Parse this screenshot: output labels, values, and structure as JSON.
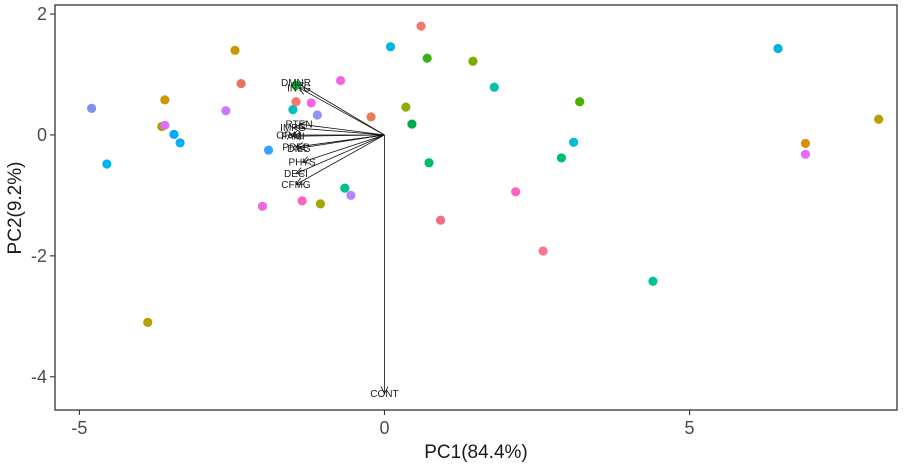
{
  "chart_data": {
    "type": "scatter",
    "subtype": "pca-biplot",
    "title": "",
    "xlabel": "PC1(84.4%)",
    "ylabel": "PC2(9.2%)",
    "xlim": [
      -5.4,
      8.4
    ],
    "ylim": [
      -4.55,
      2.15
    ],
    "xticks": [
      -5,
      0,
      5
    ],
    "yticks": [
      -4,
      -2,
      0,
      2
    ],
    "xtick_labels": [
      "-5",
      "0",
      "5"
    ],
    "ytick_labels": [
      "-4",
      "-2",
      "0",
      "2"
    ],
    "grid": false,
    "legend": "none",
    "points": [
      {
        "x": 0.6,
        "y": 1.8,
        "color": "#F07A6E"
      },
      {
        "x": 0.1,
        "y": 1.46,
        "color": "#00B5E0"
      },
      {
        "x": 0.7,
        "y": 1.27,
        "color": "#3DAE1E"
      },
      {
        "x": 1.45,
        "y": 1.22,
        "color": "#7CAE00"
      },
      {
        "x": -2.45,
        "y": 1.4,
        "color": "#C99800"
      },
      {
        "x": -2.35,
        "y": 0.85,
        "color": "#E8735E"
      },
      {
        "x": -0.72,
        "y": 0.9,
        "color": "#F564E3"
      },
      {
        "x": -1.45,
        "y": 0.82,
        "color": "#00BA38"
      },
      {
        "x": -3.6,
        "y": 0.58,
        "color": "#CD9600"
      },
      {
        "x": -4.8,
        "y": 0.44,
        "color": "#7F8FF0"
      },
      {
        "x": -2.6,
        "y": 0.4,
        "color": "#C77CFF"
      },
      {
        "x": -1.5,
        "y": 0.42,
        "color": "#00BFC4"
      },
      {
        "x": -1.45,
        "y": 0.55,
        "color": "#F8766D"
      },
      {
        "x": -1.2,
        "y": 0.53,
        "color": "#F564E3"
      },
      {
        "x": -1.1,
        "y": 0.33,
        "color": "#9590FF"
      },
      {
        "x": -0.22,
        "y": 0.3,
        "color": "#E87C55"
      },
      {
        "x": 0.35,
        "y": 0.46,
        "color": "#8FAA00"
      },
      {
        "x": 0.45,
        "y": 0.18,
        "color": "#00A84D"
      },
      {
        "x": 1.8,
        "y": 0.79,
        "color": "#00C1A7"
      },
      {
        "x": 3.2,
        "y": 0.55,
        "color": "#4DB000"
      },
      {
        "x": -3.65,
        "y": 0.14,
        "color": "#ABA300"
      },
      {
        "x": -3.6,
        "y": 0.16,
        "color": "#E36EF6"
      },
      {
        "x": -3.45,
        "y": 0.01,
        "color": "#00A9FF"
      },
      {
        "x": -3.35,
        "y": -0.13,
        "color": "#00B0F6"
      },
      {
        "x": -4.55,
        "y": -0.48,
        "color": "#00B5EC"
      },
      {
        "x": -1.9,
        "y": -0.25,
        "color": "#35A2FF"
      },
      {
        "x": 0.73,
        "y": -0.46,
        "color": "#00BE67"
      },
      {
        "x": 2.9,
        "y": -0.38,
        "color": "#00BE6C"
      },
      {
        "x": 3.1,
        "y": -0.12,
        "color": "#00BCD8"
      },
      {
        "x": 6.45,
        "y": 1.43,
        "color": "#00B4DA"
      },
      {
        "x": 6.9,
        "y": -0.14,
        "color": "#D89000"
      },
      {
        "x": 6.9,
        "y": -0.32,
        "color": "#E76BF3"
      },
      {
        "x": 8.1,
        "y": 0.26,
        "color": "#BB9D00"
      },
      {
        "x": -0.65,
        "y": -0.88,
        "color": "#00BF8F"
      },
      {
        "x": -0.55,
        "y": -1.0,
        "color": "#B385FF"
      },
      {
        "x": -1.05,
        "y": -1.14,
        "color": "#A3A500"
      },
      {
        "x": -1.35,
        "y": -1.09,
        "color": "#FF62BC"
      },
      {
        "x": -2.0,
        "y": -1.18,
        "color": "#F066E0"
      },
      {
        "x": 0.92,
        "y": -1.41,
        "color": "#F06F82"
      },
      {
        "x": 2.15,
        "y": -0.94,
        "color": "#FF61C3"
      },
      {
        "x": 2.6,
        "y": -1.92,
        "color": "#F8768F"
      },
      {
        "x": 4.4,
        "y": -2.42,
        "color": "#00C19A"
      },
      {
        "x": -3.88,
        "y": -3.1,
        "color": "#B79F00"
      }
    ],
    "vectors": [
      {
        "label": "DMNR",
        "x": -1.45,
        "y": 0.87
      },
      {
        "label": "INTG",
        "x": -1.4,
        "y": 0.78
      },
      {
        "label": "RTEN",
        "x": -1.4,
        "y": 0.18
      },
      {
        "label": "IMPG",
        "x": -1.5,
        "y": 0.12
      },
      {
        "label": "ORAL",
        "x": -1.55,
        "y": 0.0
      },
      {
        "label": "FAMI",
        "x": -1.5,
        "y": -0.02
      },
      {
        "label": "PREP",
        "x": -1.45,
        "y": -0.2
      },
      {
        "label": "DILG",
        "x": -1.4,
        "y": -0.22
      },
      {
        "label": "PHYS",
        "x": -1.35,
        "y": -0.45
      },
      {
        "label": "DECI",
        "x": -1.45,
        "y": -0.64
      },
      {
        "label": "CFMG",
        "x": -1.45,
        "y": -0.82
      },
      {
        "label": "CONT",
        "x": 0.0,
        "y": -4.28
      }
    ]
  }
}
